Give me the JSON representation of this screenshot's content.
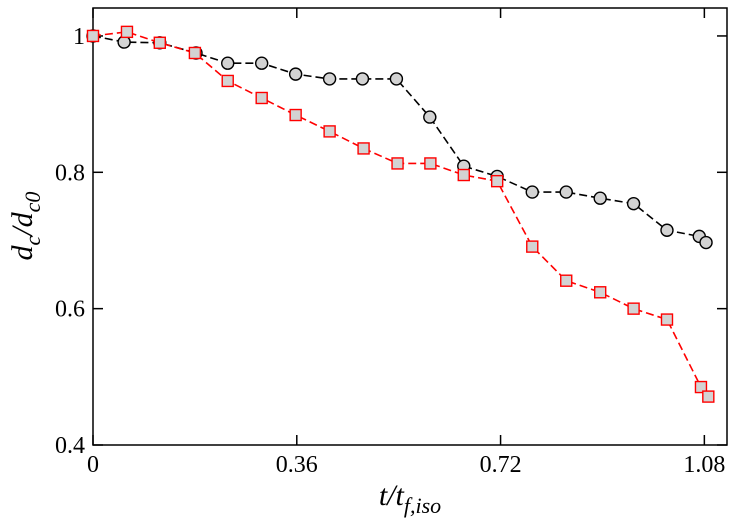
{
  "chart_data": {
    "type": "line",
    "x_label": [
      "t/t",
      "f,iso"
    ],
    "y_label": [
      "d",
      "c",
      "/d",
      "c0"
    ],
    "xlim": [
      0,
      1.12
    ],
    "ylim": [
      0.4,
      1.041
    ],
    "xticks": [
      0,
      0.36,
      0.72,
      1.08
    ],
    "yticks": [
      0.4,
      0.6,
      0.8,
      1
    ],
    "line_style": "dashed",
    "marker_fill": "#d3d3d3",
    "series": [
      {
        "color": "#000000",
        "marker": "circle",
        "x": [
          0,
          0.055,
          0.118,
          0.182,
          0.238,
          0.298,
          0.358,
          0.418,
          0.476,
          0.536,
          0.595,
          0.655,
          0.714,
          0.776,
          0.836,
          0.896,
          0.955,
          1.014,
          1.071,
          1.083
        ],
        "values": [
          1.0,
          0.991,
          0.99,
          0.975,
          0.96,
          0.96,
          0.944,
          0.937,
          0.937,
          0.937,
          0.881,
          0.809,
          0.794,
          0.771,
          0.771,
          0.762,
          0.754,
          0.715,
          0.706,
          0.697
        ]
      },
      {
        "color": "#ff0000",
        "marker": "square",
        "x": [
          0,
          0.06,
          0.118,
          0.18,
          0.238,
          0.298,
          0.358,
          0.418,
          0.478,
          0.538,
          0.596,
          0.655,
          0.714,
          0.776,
          0.836,
          0.896,
          0.955,
          1.014,
          1.074,
          1.087
        ],
        "values": [
          1.0,
          1.006,
          0.99,
          0.975,
          0.934,
          0.909,
          0.884,
          0.86,
          0.835,
          0.813,
          0.813,
          0.796,
          0.787,
          0.691,
          0.641,
          0.624,
          0.6,
          0.584,
          0.485,
          0.471
        ]
      }
    ]
  }
}
